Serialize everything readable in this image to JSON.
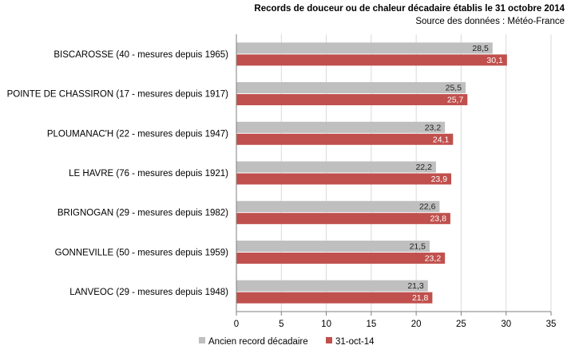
{
  "chart_data": {
    "type": "bar",
    "orientation": "horizontal",
    "title": "Records de douceur ou de chaleur décadaire  établis le 31 octobre 2014",
    "subtitle": "Source des données : Météo-France",
    "categories": [
      "BISCAROSSE (40 - mesures depuis 1965)",
      "POINTE DE CHASSIRON  (17 - mesures depuis 1917)",
      "PLOUMANAC'H (22 - mesures depuis 1947)",
      "LE HAVRE (76 - mesures depuis 1921)",
      "BRIGNOGAN (29 - mesures depuis 1982)",
      "GONNEVILLE  (50 - mesures depuis 1959)",
      "LANVEOC (29 - mesures depuis 1948)"
    ],
    "series": [
      {
        "name": "Ancien record décadaire",
        "color": "#bfbfbf",
        "values": [
          28.5,
          25.5,
          23.2,
          22.2,
          22.6,
          21.5,
          21.3
        ],
        "labels": [
          "28,5",
          "25,5",
          "23,2",
          "22,2",
          "22,6",
          "21,5",
          "21,3"
        ]
      },
      {
        "name": "31-oct-14",
        "color": "#c0504d",
        "values": [
          30.1,
          25.7,
          24.1,
          23.9,
          23.8,
          23.2,
          21.8
        ],
        "labels": [
          "30,1",
          "25,7",
          "24,1",
          "23,9",
          "23,8",
          "23,2",
          "21,8"
        ]
      }
    ],
    "xlim": [
      0,
      35
    ],
    "xticks": [
      0,
      5,
      10,
      15,
      20,
      25,
      30,
      35
    ],
    "xlabel": "",
    "ylabel": "",
    "grid": true,
    "legend": "bottom"
  }
}
